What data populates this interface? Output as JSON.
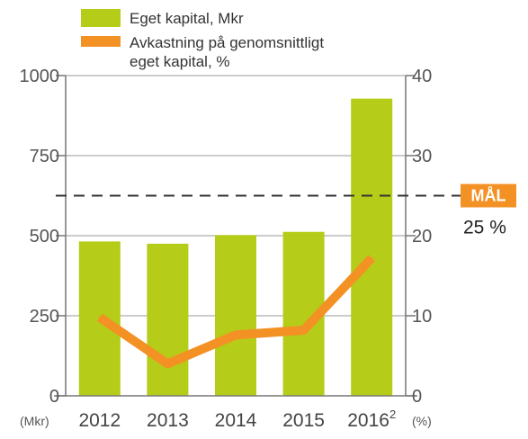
{
  "chart_data": {
    "type": "bar",
    "categories": [
      "2012",
      "2013",
      "2014",
      "2015",
      "2016"
    ],
    "category_superscripts": [
      "",
      "",
      "",
      "",
      "2"
    ],
    "series": [
      {
        "name": "Eget kapital, Mkr",
        "type": "bar",
        "axis": "left",
        "color": "#b5cc18",
        "values": [
          482,
          475,
          502,
          512,
          928
        ]
      },
      {
        "name": "Avkastning på genomsnittligt eget kapital, %",
        "name_lines": [
          "Avkastning på genomsnittligt",
          "eget kapital, %"
        ],
        "type": "line",
        "axis": "right",
        "color": "#f39125",
        "values": [
          9.8,
          4.0,
          7.6,
          8.2,
          17.2
        ]
      }
    ],
    "y_left": {
      "min": 0,
      "max": 1000,
      "ticks": [
        "0",
        "250",
        "500",
        "750",
        "1000"
      ],
      "unit_label": "(Mkr)"
    },
    "y_right": {
      "min": 0,
      "max": 40,
      "ticks": [
        "0",
        "10",
        "20",
        "30",
        "40"
      ],
      "unit_label": "(%)"
    },
    "target": {
      "label": "MÅL",
      "value": 25,
      "value_label": "25 %",
      "axis": "right",
      "color": "#f39125"
    },
    "grid": true,
    "legend_position": "top-left"
  }
}
